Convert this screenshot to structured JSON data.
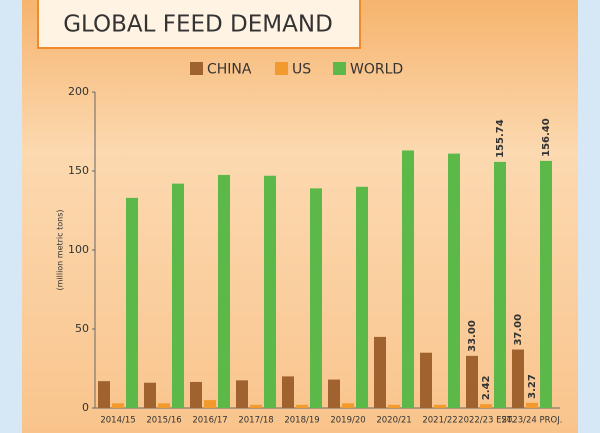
{
  "chart_data": {
    "type": "bar",
    "title": "GLOBAL FEED DEMAND",
    "y_label": "(million metric tons)",
    "categories": [
      "2014/15",
      "2015/16",
      "2016/17",
      "2017/18",
      "2018/19",
      "2019/20",
      "2020/21",
      "2021/22",
      "2022/23 EST.",
      "2023/24 PROJ."
    ],
    "series": [
      {
        "name": "CHINA",
        "color": "#a0622e",
        "values": [
          17,
          16,
          16.5,
          17.5,
          20,
          18,
          45,
          35,
          33,
          37
        ],
        "value_labels": [
          null,
          null,
          null,
          null,
          null,
          null,
          null,
          null,
          "33.00",
          "37.00"
        ]
      },
      {
        "name": "US",
        "color": "#f29a2e",
        "values": [
          3,
          3,
          5,
          2,
          2,
          3,
          2,
          2,
          2.42,
          3.27
        ],
        "value_labels": [
          null,
          null,
          null,
          null,
          null,
          null,
          null,
          null,
          "2.42",
          "3.27"
        ]
      },
      {
        "name": "WORLD",
        "color": "#5db84a",
        "values": [
          133,
          142,
          147.5,
          147,
          139,
          140,
          163,
          161,
          155.74,
          156.4
        ],
        "value_labels": [
          null,
          null,
          null,
          null,
          null,
          null,
          null,
          null,
          "155.74",
          "156.40"
        ]
      }
    ],
    "ylim": [
      0,
      200
    ],
    "yticks": [
      0,
      50,
      100,
      150,
      200
    ],
    "grid": false
  }
}
